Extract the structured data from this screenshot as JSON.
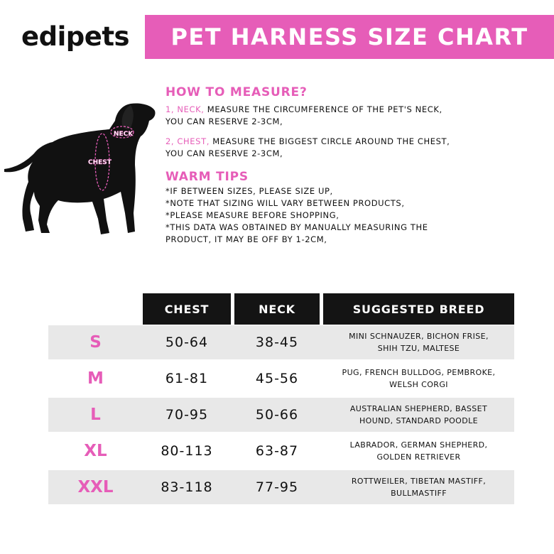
{
  "brand": {
    "logo": "edipets"
  },
  "banner": {
    "title": "PET HARNESS SIZE CHART"
  },
  "diagram": {
    "neck_label": "NECK",
    "chest_label": "CHEST"
  },
  "how_to_measure": {
    "title": "HOW TO MEASURE?",
    "neck": {
      "label": "1, NECK,",
      "text": "MEASURE THE CIRCUMFERENCE OF THE PET'S NECK,",
      "text2": "YOU CAN RESERVE 2-3CM,"
    },
    "chest": {
      "label": "2, CHEST,",
      "text": "MEASURE THE BIGGEST CIRCLE AROUND THE CHEST,",
      "text2": "YOU CAN RESERVE 2-3CM,"
    }
  },
  "warm_tips": {
    "title": "WARM TIPS",
    "lines": [
      "*IF BETWEEN SIZES, PLEASE SIZE UP,",
      "*NOTE THAT SIZING WILL VARY BETWEEN PRODUCTS,",
      "*PLEASE MEASURE BEFORE SHOPPING,",
      "*THIS DATA WAS OBTAINED BY MANUALLY MEASURING THE",
      "PRODUCT, IT MAY BE OFF BY 1-2CM,"
    ]
  },
  "table": {
    "headers": [
      "CHEST",
      "NECK",
      "SUGGESTED BREED"
    ],
    "rows": [
      {
        "size": "S",
        "chest": "50-64",
        "neck": "38-45",
        "breed1": "MINI SCHNAUZER, BICHON FRISE,",
        "breed2": "SHIH TZU, MALTESE"
      },
      {
        "size": "M",
        "chest": "61-81",
        "neck": "45-56",
        "breed1": "PUG, FRENCH BULLDOG, PEMBROKE,",
        "breed2": "WELSH CORGI"
      },
      {
        "size": "L",
        "chest": "70-95",
        "neck": "50-66",
        "breed1": "AUSTRALIAN SHEPHERD, BASSET",
        "breed2": "HOUND, STANDARD POODLE"
      },
      {
        "size": "XL",
        "chest": "80-113",
        "neck": "63-87",
        "breed1": "LABRADOR, GERMAN SHEPHERD,",
        "breed2": "GOLDEN RETRIEVER"
      },
      {
        "size": "XXL",
        "chest": "83-118",
        "neck": "77-95",
        "breed1": "ROTTWEILER, TIBETAN MASTIFF,",
        "breed2": "BULLMASTIFF"
      }
    ]
  },
  "colors": {
    "accent": "#e65db8",
    "header": "#141414",
    "row_shade": "#e8e8e8"
  }
}
